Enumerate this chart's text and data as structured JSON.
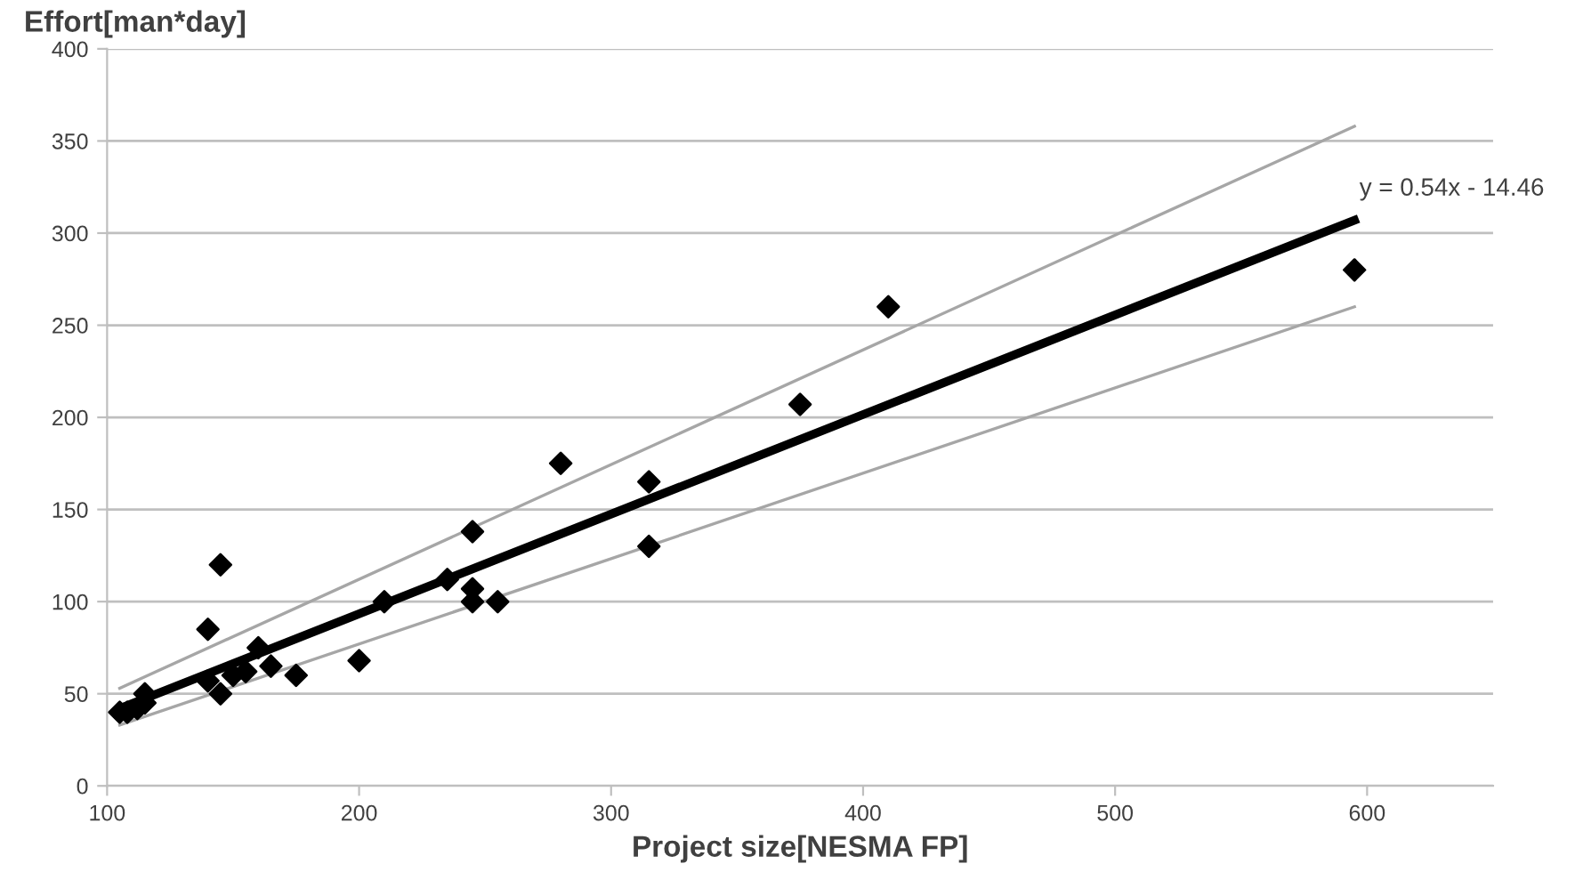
{
  "chart_data": {
    "type": "scatter",
    "xlabel": "Project size[NESMA FP]",
    "ylabel": "Effort[man*day]",
    "xlim": [
      100,
      650
    ],
    "xticks": [
      100,
      200,
      300,
      400,
      500,
      600
    ],
    "ylim": [
      0,
      400
    ],
    "yticks": [
      0,
      50,
      100,
      150,
      200,
      250,
      300,
      350,
      400
    ],
    "grid": "y",
    "legend": false,
    "series": [
      {
        "marker": "diamond",
        "color": "#000000",
        "x": [
          105,
          108,
          112,
          115,
          115,
          140,
          145,
          140,
          145,
          150,
          155,
          160,
          165,
          175,
          200,
          210,
          235,
          245,
          245,
          245,
          255,
          280,
          315,
          315,
          375,
          410,
          595
        ],
        "values": [
          40,
          40,
          42,
          45,
          50,
          85,
          120,
          57,
          50,
          60,
          62,
          75,
          65,
          60,
          68,
          100,
          112,
          138,
          100,
          107,
          100,
          175,
          165,
          130,
          207,
          260,
          280
        ]
      },
      {
        "type": "line",
        "color": "#000000",
        "x": [
          105,
          595
        ],
        "values": [
          42,
          307
        ]
      },
      {
        "type": "line",
        "color": "#a6a6a6",
        "x": [
          105,
          595
        ],
        "values": [
          53,
          358
        ]
      },
      {
        "type": "line",
        "color": "#a6a6a6",
        "x": [
          105,
          595
        ],
        "values": [
          33,
          260
        ]
      }
    ],
    "annotations": [
      {
        "text": "y = 0.54x - 14.46",
        "x": 595,
        "y": 307
      }
    ]
  }
}
